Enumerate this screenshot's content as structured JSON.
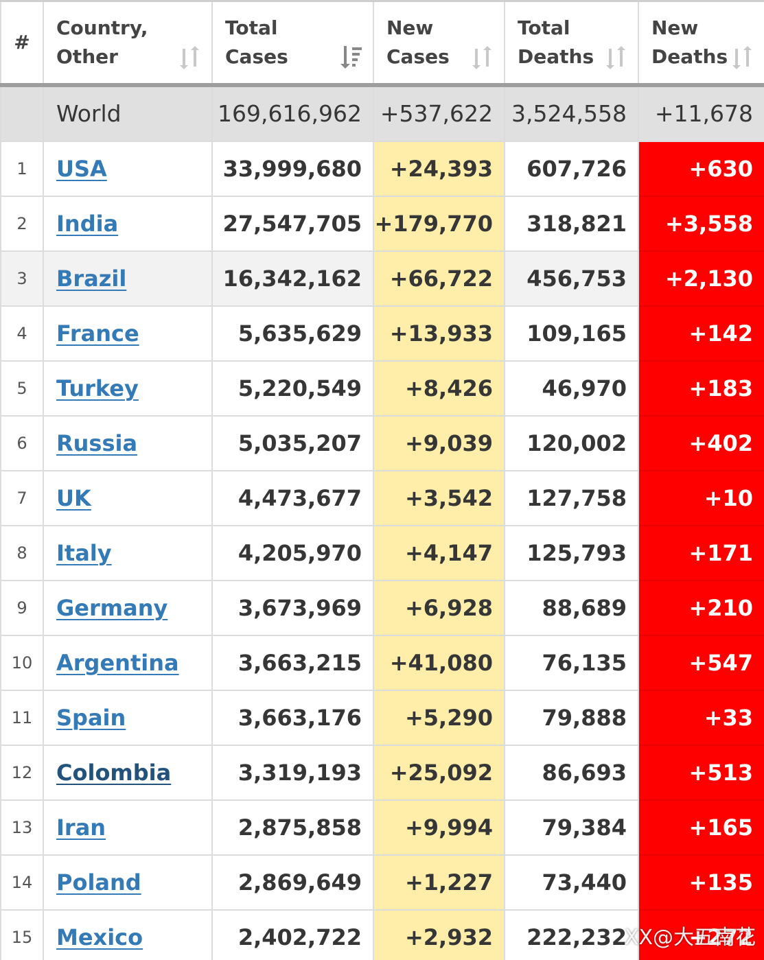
{
  "headers": {
    "rank": "#",
    "country": "Country,\nOther",
    "total_cases": "Total\nCases",
    "new_cases": "New\nCases",
    "total_deaths": "Total\nDeaths",
    "new_deaths": "New\nDeaths"
  },
  "world": {
    "label": "World",
    "total_cases": "169,616,962",
    "new_cases": "+537,622",
    "total_deaths": "3,524,558",
    "new_deaths": "+11,678"
  },
  "rows": [
    {
      "rank": "1",
      "country": "USA",
      "total_cases": "33,999,680",
      "new_cases": "+24,393",
      "total_deaths": "607,726",
      "new_deaths": "+630"
    },
    {
      "rank": "2",
      "country": "India",
      "total_cases": "27,547,705",
      "new_cases": "+179,770",
      "total_deaths": "318,821",
      "new_deaths": "+3,558"
    },
    {
      "rank": "3",
      "country": "Brazil",
      "total_cases": "16,342,162",
      "new_cases": "+66,722",
      "total_deaths": "456,753",
      "new_deaths": "+2,130"
    },
    {
      "rank": "4",
      "country": "France",
      "total_cases": "5,635,629",
      "new_cases": "+13,933",
      "total_deaths": "109,165",
      "new_deaths": "+142"
    },
    {
      "rank": "5",
      "country": "Turkey",
      "total_cases": "5,220,549",
      "new_cases": "+8,426",
      "total_deaths": "46,970",
      "new_deaths": "+183"
    },
    {
      "rank": "6",
      "country": "Russia",
      "total_cases": "5,035,207",
      "new_cases": "+9,039",
      "total_deaths": "120,002",
      "new_deaths": "+402"
    },
    {
      "rank": "7",
      "country": "UK",
      "total_cases": "4,473,677",
      "new_cases": "+3,542",
      "total_deaths": "127,758",
      "new_deaths": "+10"
    },
    {
      "rank": "8",
      "country": "Italy",
      "total_cases": "4,205,970",
      "new_cases": "+4,147",
      "total_deaths": "125,793",
      "new_deaths": "+171"
    },
    {
      "rank": "9",
      "country": "Germany",
      "total_cases": "3,673,969",
      "new_cases": "+6,928",
      "total_deaths": "88,689",
      "new_deaths": "+210"
    },
    {
      "rank": "10",
      "country": "Argentina",
      "total_cases": "3,663,215",
      "new_cases": "+41,080",
      "total_deaths": "76,135",
      "new_deaths": "+547"
    },
    {
      "rank": "11",
      "country": "Spain",
      "total_cases": "3,663,176",
      "new_cases": "+5,290",
      "total_deaths": "79,888",
      "new_deaths": "+33"
    },
    {
      "rank": "12",
      "country": "Colombia",
      "total_cases": "3,319,193",
      "new_cases": "+25,092",
      "total_deaths": "86,693",
      "new_deaths": "+513"
    },
    {
      "rank": "13",
      "country": "Iran",
      "total_cases": "2,875,858",
      "new_cases": "+9,994",
      "total_deaths": "79,384",
      "new_deaths": "+165"
    },
    {
      "rank": "14",
      "country": "Poland",
      "total_cases": "2,869,649",
      "new_cases": "+1,227",
      "total_deaths": "73,440",
      "new_deaths": "+135"
    },
    {
      "rank": "15",
      "country": "Mexico",
      "total_cases": "2,402,722",
      "new_cases": "+2,932",
      "total_deaths": "222,232",
      "new_deaths": "+272"
    }
  ],
  "icons": {
    "sort_default": "sort-arrows-icon",
    "sort_desc_active": "sort-descending-icon"
  },
  "colors": {
    "link": "#337ab7",
    "link_visited": "#23527c",
    "new_cases_bg": "#ffeeaa",
    "new_deaths_bg": "#ff0000",
    "world_row_bg": "#e0e0e0"
  },
  "watermark": "XX@大五南花"
}
